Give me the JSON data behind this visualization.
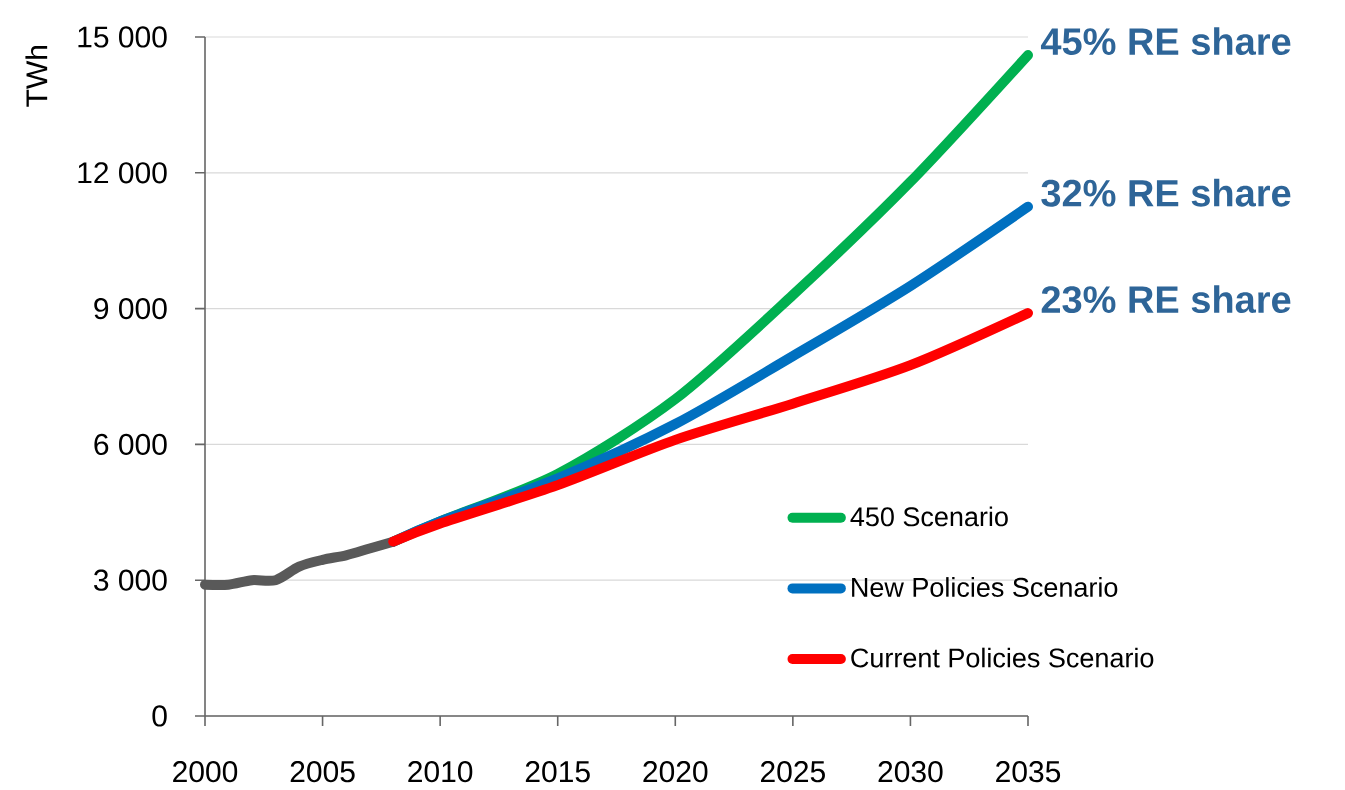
{
  "chart_data": {
    "type": "line",
    "ylabel": "TWh",
    "xlim": [
      2000,
      2035
    ],
    "ylim": [
      0,
      15000
    ],
    "xticks": [
      2000,
      2005,
      2010,
      2015,
      2020,
      2025,
      2030,
      2035
    ],
    "yticks": [
      0,
      {
        "value": 3000,
        "label": "3 000"
      },
      {
        "value": 6000,
        "label": "6 000"
      },
      {
        "value": 9000,
        "label": "9 000"
      },
      {
        "value": 12000,
        "label": "12 000"
      },
      {
        "value": 15000,
        "label": "15 000"
      }
    ],
    "grid": "y",
    "legend": "bottom right",
    "line_style": "solid",
    "marker": "none",
    "series": [
      {
        "color": "#595959",
        "x": [
          2000,
          2001,
          2002,
          2003,
          2004,
          2005,
          2006,
          2007,
          2008
        ],
        "values": [
          2900,
          2900,
          3000,
          3000,
          3300,
          3450,
          3550,
          3700,
          3850
        ]
      },
      {
        "name": "450 Scenario",
        "color": "#00b050",
        "x": [
          2008,
          2010,
          2015,
          2020,
          2025,
          2030,
          2035
        ],
        "values": [
          3850,
          4300,
          5350,
          7000,
          9300,
          11800,
          14600
        ]
      },
      {
        "name": "New Policies Scenario",
        "color": "#0070c0",
        "x": [
          2008,
          2010,
          2015,
          2020,
          2025,
          2030,
          2035
        ],
        "values": [
          3850,
          4300,
          5250,
          6450,
          7950,
          9500,
          11250
        ]
      },
      {
        "name": "Current Policies Scenario",
        "color": "#ff0000",
        "x": [
          2008,
          2010,
          2015,
          2020,
          2025,
          2030,
          2035
        ],
        "values": [
          3850,
          4250,
          5100,
          6100,
          6900,
          7750,
          8900
        ]
      }
    ],
    "annotations": [
      "45% RE share",
      "32% RE share",
      "23% RE share"
    ]
  }
}
